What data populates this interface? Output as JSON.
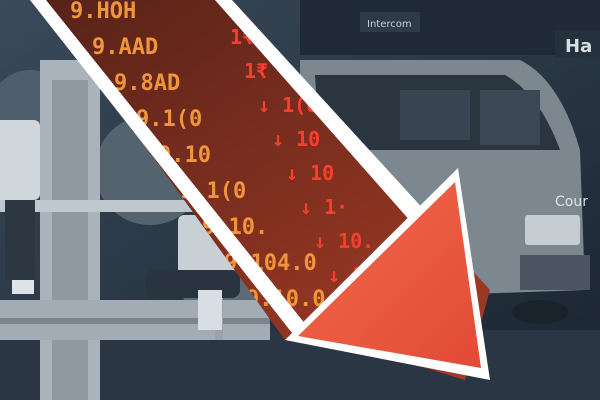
{
  "image": {
    "ticker_rows": [
      "9.HOH",
      "9.AAD",
      "9.8AD",
      "9.1(0",
      "9.10",
      "9.1(0",
      "9.10.",
      "9.104.0",
      "9.10.0"
    ],
    "ticker_right_rows": [
      "1₹",
      "1₹",
      "↓ 1(0",
      "↓ 10",
      "↓ 10",
      "↓ 1·",
      "↓ 10.",
      "↓ 10"
    ],
    "van_text": "Cour",
    "sign_text_1": "Intercom",
    "sign_text_2": "Ha",
    "colors": {
      "arrow_red": "#e8503a",
      "ticker_amber": "#f3a23a",
      "ticker_red": "#ff3b2e",
      "duotone_dark": "#1b2634",
      "duotone_light": "#c9d0d6"
    }
  }
}
